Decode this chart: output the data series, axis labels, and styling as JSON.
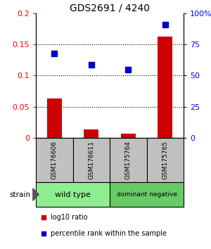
{
  "title": "GDS2691 / 4240",
  "samples": [
    "GSM176606",
    "GSM176611",
    "GSM175764",
    "GSM175765"
  ],
  "log10_ratio": [
    0.063,
    0.013,
    0.006,
    0.163
  ],
  "percentile_rank": [
    68,
    59,
    55,
    91
  ],
  "groups": [
    {
      "label": "wild type",
      "indices": [
        0,
        1
      ],
      "color": "#90EE90"
    },
    {
      "label": "dominant negative",
      "indices": [
        2,
        3
      ],
      "color": "#66CC66"
    }
  ],
  "ylim_left": [
    0,
    0.2
  ],
  "ylim_right": [
    0,
    100
  ],
  "yticks_left": [
    0,
    0.05,
    0.1,
    0.15,
    0.2
  ],
  "yticks_right": [
    0,
    25,
    50,
    75,
    100
  ],
  "bar_color": "#CC0000",
  "scatter_color": "#0000CC",
  "sample_box_color": "#C0C0C0",
  "legend_red_label": "log10 ratio",
  "legend_blue_label": "percentile rank within the sample",
  "bar_width": 0.4,
  "scatter_size": 28
}
